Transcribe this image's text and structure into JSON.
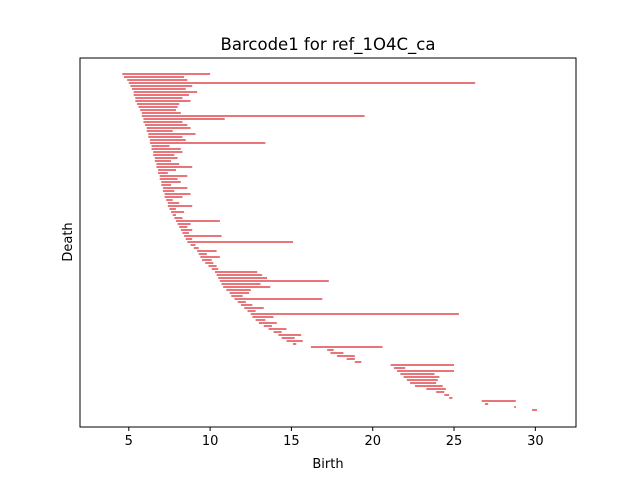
{
  "chart_data": {
    "type": "barcode",
    "title": "Barcode1 for ref_1O4C_ca",
    "xlabel": "Birth",
    "ylabel": "Death",
    "xlim": [
      2.0,
      32.5
    ],
    "xticks": [
      5,
      10,
      15,
      20,
      25,
      30
    ],
    "xtick_labels": [
      "5",
      "10",
      "15",
      "20",
      "25",
      "30"
    ],
    "yticks": [],
    "grid": false,
    "bar_color": "#e8757a",
    "intervals": [
      [
        4.6,
        10.0
      ],
      [
        4.7,
        8.4
      ],
      [
        4.9,
        8.6
      ],
      [
        5.0,
        26.3
      ],
      [
        5.1,
        8.9
      ],
      [
        5.2,
        8.5
      ],
      [
        5.3,
        9.2
      ],
      [
        5.3,
        8.7
      ],
      [
        5.4,
        8.3
      ],
      [
        5.4,
        8.8
      ],
      [
        5.5,
        8.1
      ],
      [
        5.6,
        8.0
      ],
      [
        5.7,
        7.9
      ],
      [
        5.8,
        8.2
      ],
      [
        5.8,
        19.5
      ],
      [
        5.9,
        10.9
      ],
      [
        5.9,
        8.3
      ],
      [
        6.0,
        8.6
      ],
      [
        6.1,
        8.8
      ],
      [
        6.1,
        7.7
      ],
      [
        6.2,
        9.1
      ],
      [
        6.2,
        8.3
      ],
      [
        6.3,
        8.5
      ],
      [
        6.3,
        13.4
      ],
      [
        6.4,
        7.5
      ],
      [
        6.4,
        8.2
      ],
      [
        6.5,
        8.3
      ],
      [
        6.5,
        7.8
      ],
      [
        6.6,
        8.0
      ],
      [
        6.6,
        7.6
      ],
      [
        6.7,
        8.1
      ],
      [
        6.7,
        8.9
      ],
      [
        6.8,
        7.9
      ],
      [
        6.8,
        7.4
      ],
      [
        6.9,
        8.6
      ],
      [
        6.9,
        8.0
      ],
      [
        7.0,
        8.2
      ],
      [
        7.0,
        7.6
      ],
      [
        7.1,
        8.6
      ],
      [
        7.1,
        7.8
      ],
      [
        7.2,
        8.8
      ],
      [
        7.2,
        8.3
      ],
      [
        7.3,
        7.7
      ],
      [
        7.4,
        8.1
      ],
      [
        7.4,
        8.9
      ],
      [
        7.5,
        7.9
      ],
      [
        7.6,
        8.4
      ],
      [
        7.7,
        7.9
      ],
      [
        7.8,
        8.3
      ],
      [
        7.9,
        10.6
      ],
      [
        8.0,
        8.8
      ],
      [
        8.1,
        8.6
      ],
      [
        8.2,
        8.9
      ],
      [
        8.3,
        8.7
      ],
      [
        8.4,
        10.7
      ],
      [
        8.5,
        8.9
      ],
      [
        8.6,
        15.1
      ],
      [
        8.8,
        9.1
      ],
      [
        9.0,
        9.3
      ],
      [
        9.2,
        10.4
      ],
      [
        9.3,
        9.8
      ],
      [
        9.4,
        10.6
      ],
      [
        9.5,
        10.1
      ],
      [
        9.7,
        10.2
      ],
      [
        9.9,
        10.4
      ],
      [
        10.1,
        10.5
      ],
      [
        10.3,
        12.9
      ],
      [
        10.4,
        13.2
      ],
      [
        10.5,
        13.5
      ],
      [
        10.6,
        17.3
      ],
      [
        10.7,
        13.1
      ],
      [
        10.8,
        13.7
      ],
      [
        11.0,
        12.5
      ],
      [
        11.2,
        12.4
      ],
      [
        11.3,
        12.0
      ],
      [
        11.5,
        16.9
      ],
      [
        11.7,
        12.2
      ],
      [
        11.9,
        12.6
      ],
      [
        12.1,
        13.3
      ],
      [
        12.3,
        12.8
      ],
      [
        12.5,
        25.3
      ],
      [
        12.6,
        13.9
      ],
      [
        12.8,
        13.4
      ],
      [
        13.0,
        14.1
      ],
      [
        13.3,
        13.8
      ],
      [
        13.6,
        14.7
      ],
      [
        13.9,
        14.4
      ],
      [
        14.2,
        15.6
      ],
      [
        14.4,
        15.2
      ],
      [
        14.7,
        15.7
      ],
      [
        15.1,
        15.3
      ],
      [
        16.2,
        20.6
      ],
      [
        17.2,
        17.6
      ],
      [
        17.4,
        18.2
      ],
      [
        17.8,
        18.9
      ],
      [
        18.4,
        18.9
      ],
      [
        18.9,
        19.3
      ],
      [
        21.1,
        25.0
      ],
      [
        21.3,
        22.0
      ],
      [
        21.5,
        25.0
      ],
      [
        21.7,
        23.8
      ],
      [
        21.9,
        24.1
      ],
      [
        22.1,
        24.0
      ],
      [
        22.3,
        23.9
      ],
      [
        22.6,
        24.3
      ],
      [
        23.3,
        24.5
      ],
      [
        23.9,
        24.4
      ],
      [
        24.4,
        24.7
      ],
      [
        24.7,
        24.9
      ],
      [
        26.7,
        28.8
      ],
      [
        26.9,
        27.1
      ],
      [
        28.7,
        28.8
      ],
      [
        29.8,
        30.1
      ]
    ]
  }
}
